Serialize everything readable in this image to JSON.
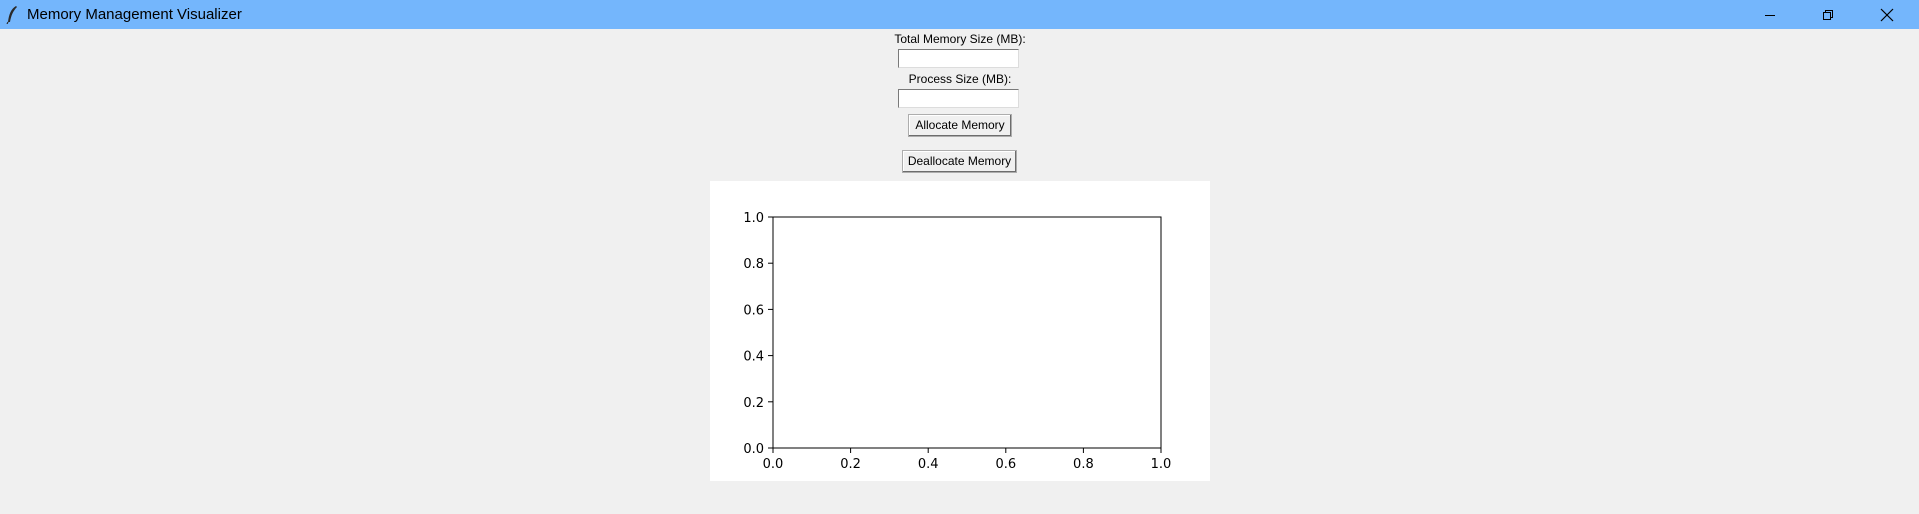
{
  "window": {
    "title": "Memory Management Visualizer",
    "controls": {
      "minimize": "minimize-icon",
      "maximize": "restore-icon",
      "close": "close-icon"
    }
  },
  "form": {
    "total_memory_label": "Total Memory Size (MB):",
    "total_memory_value": "",
    "process_size_label": "Process Size (MB):",
    "process_size_value": "",
    "allocate_label": "Allocate Memory",
    "deallocate_label": "Deallocate Memory"
  },
  "colors": {
    "titlebar": "#74b6fc",
    "background": "#f0f0f0",
    "plot_bg": "#ffffff"
  },
  "chart_data": {
    "type": "bar",
    "title": "",
    "xlabel": "",
    "ylabel": "",
    "xlim": [
      0.0,
      1.0
    ],
    "ylim": [
      0.0,
      1.0
    ],
    "x_ticks": [
      "0.0",
      "0.2",
      "0.4",
      "0.6",
      "0.8",
      "1.0"
    ],
    "y_ticks": [
      "0.0",
      "0.2",
      "0.4",
      "0.6",
      "0.8",
      "1.0"
    ],
    "series": [],
    "grid": false
  }
}
